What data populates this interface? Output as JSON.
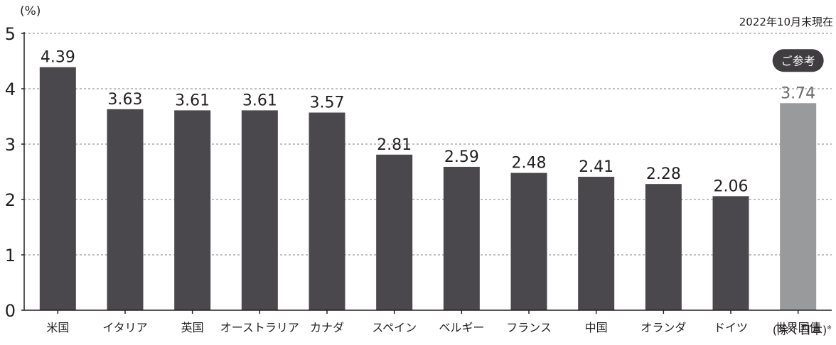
{
  "chart_data": {
    "type": "bar",
    "title": "",
    "unit_label": "(%)",
    "as_of": "2022年10月末現在",
    "xlabel": "",
    "ylabel": "",
    "ylim": [
      0,
      5
    ],
    "yticks": [
      "0",
      "1",
      "2",
      "3",
      "4",
      "5"
    ],
    "grid": true,
    "categories": [
      "米国",
      "イタリア",
      "英国",
      "オーストラリア",
      "カナダ",
      "スペイン",
      "ベルギー",
      "フランス",
      "中国",
      "オランダ",
      "ドイツ",
      "世界国債"
    ],
    "values": [
      4.39,
      3.63,
      3.61,
      3.61,
      3.57,
      2.81,
      2.59,
      2.48,
      2.41,
      2.28,
      2.06,
      3.74
    ],
    "value_labels": [
      "4.39",
      "3.63",
      "3.61",
      "3.61",
      "3.57",
      "2.81",
      "2.59",
      "2.48",
      "2.41",
      "2.28",
      "2.06",
      "3.74"
    ],
    "reference": {
      "index": 11,
      "badge": "ご参考",
      "sub_label": "(除く日本)",
      "note_mark": "※"
    },
    "colors": {
      "bar": "#4a484c",
      "reference_bar": "#999a9c",
      "axis": "#231f20",
      "grid": "#9a9a9a",
      "badge": "#3f3d40"
    }
  }
}
